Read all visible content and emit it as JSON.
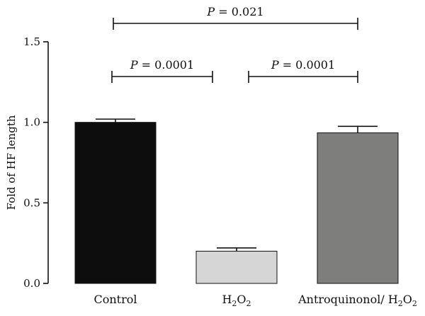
{
  "chart_data": {
    "type": "bar",
    "categories": [
      {
        "base": "Control",
        "sub": ""
      },
      {
        "base": "H",
        "sub": "2",
        "rest": "O",
        "sub2": "2"
      },
      {
        "base": "Antroquinonol/ H",
        "sub": "2",
        "rest": "O",
        "sub2": "2"
      }
    ],
    "category_names": [
      "Control",
      "H2O2",
      "Antroquinonol/ H2O2"
    ],
    "values": [
      1.0,
      0.2,
      0.935
    ],
    "errors": [
      0.02,
      0.02,
      0.04
    ],
    "bar_colors": [
      "#0d0d0d",
      "#d6d6d6",
      "#7e7f7d"
    ],
    "ylabel": "Fold of HF length",
    "ylim": [
      0,
      1.5
    ],
    "yticks": [
      "0.0",
      "0.5",
      "1.0",
      "1.5"
    ],
    "yticks_values": [
      0,
      0.5,
      1.0,
      1.5
    ],
    "grid": false,
    "significance": [
      {
        "from": 0,
        "to": 1,
        "label_p": "P",
        "label_rest": " = 0.0001",
        "level": 1
      },
      {
        "from": 1,
        "to": 2,
        "label_p": "P",
        "label_rest": " = 0.0001",
        "level": 1
      },
      {
        "from": 0,
        "to": 2,
        "label_p": "P",
        "label_rest": " = 0.021",
        "level": 2
      }
    ]
  }
}
